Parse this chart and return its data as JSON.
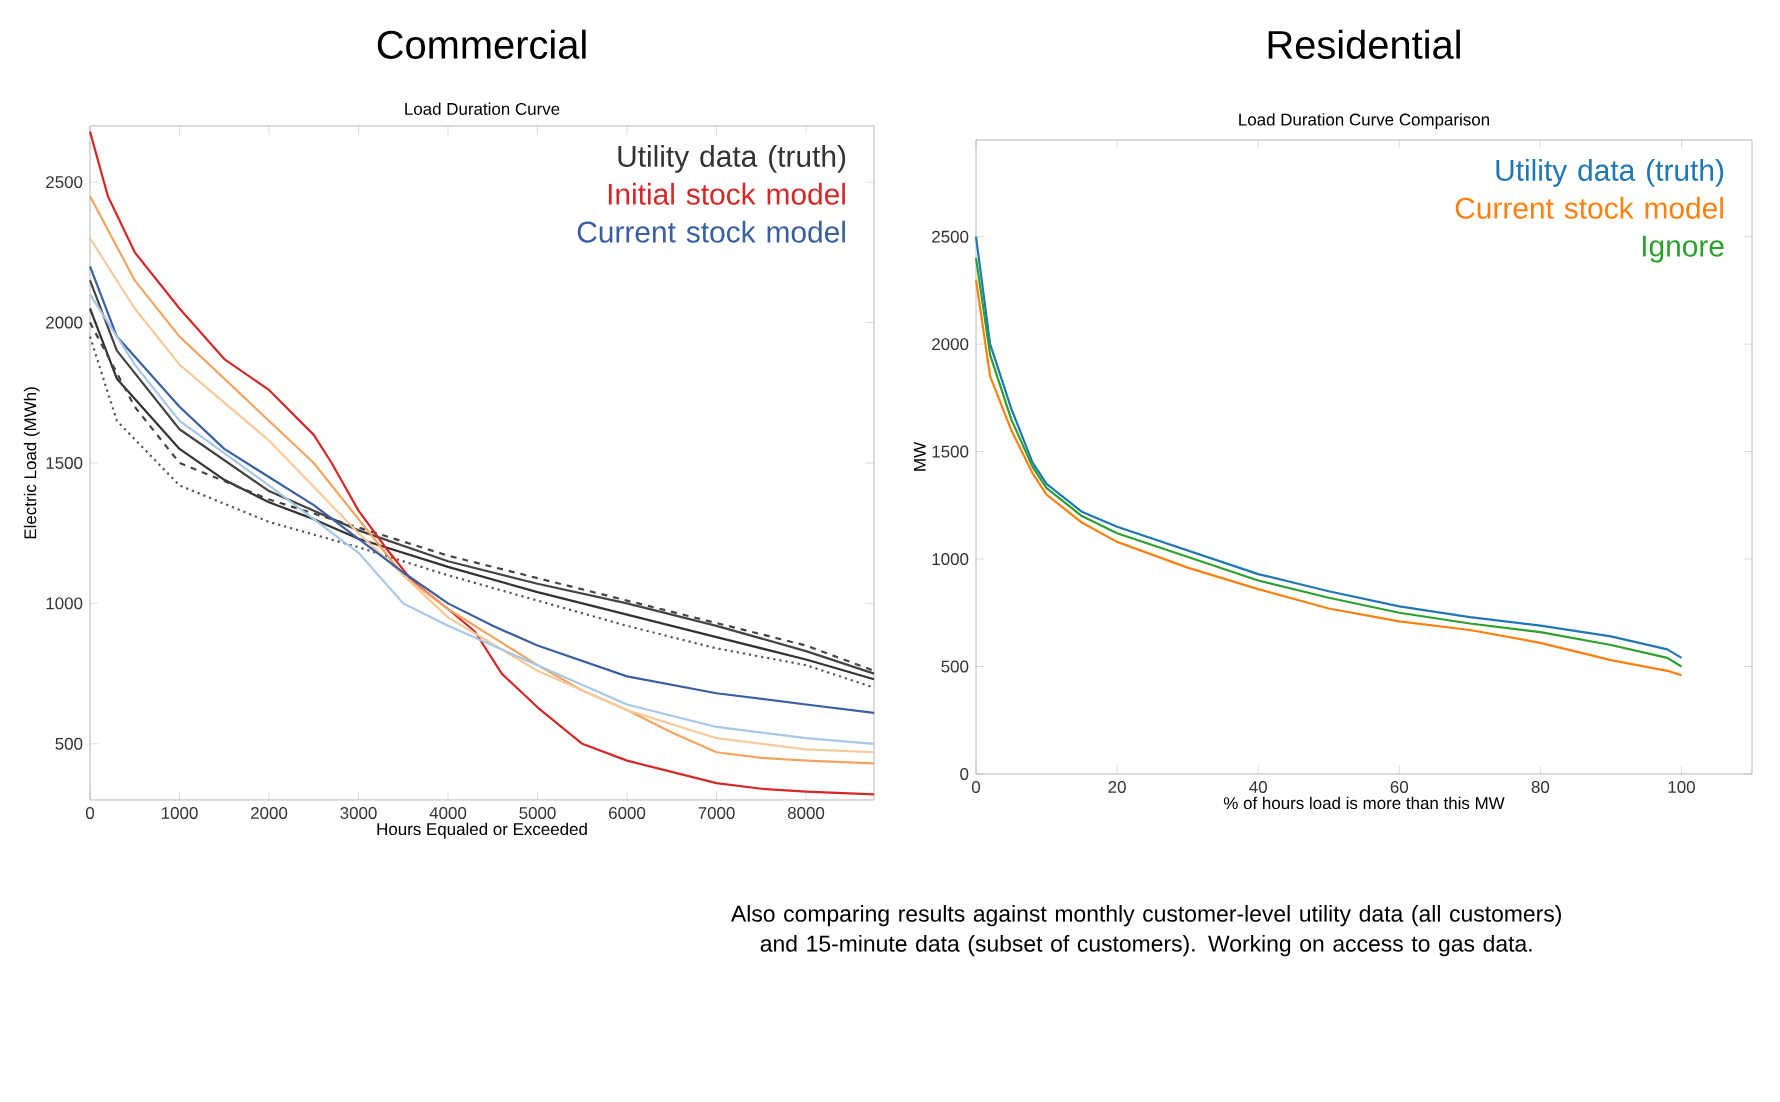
{
  "chart_data": [
    {
      "type": "line",
      "title": "Commercial",
      "subtitle": "Load Duration Curve",
      "xlabel": "Hours Equaled or Exceeded",
      "ylabel": "Electric Load (MWh)",
      "xlim": [
        0,
        8760
      ],
      "ylim": [
        300,
        2700
      ],
      "xticks": [
        0,
        1000,
        2000,
        3000,
        4000,
        5000,
        6000,
        7000,
        8000
      ],
      "yticks": [
        500,
        1000,
        1500,
        2000,
        2500
      ],
      "legend": "top right",
      "series": [
        {
          "name": "Utility data (truth)",
          "color": "#333333",
          "line_style": "solid",
          "x": [
            0,
            300,
            1000,
            1500,
            2000,
            2500,
            3000,
            4000,
            5000,
            6000,
            7000,
            8000,
            8760
          ],
          "values": [
            2050,
            1800,
            1550,
            1440,
            1360,
            1300,
            1230,
            1130,
            1040,
            960,
            880,
            800,
            730
          ]
        },
        {
          "color": "#444444",
          "line_style": "solid",
          "x": [
            0,
            300,
            1000,
            2000,
            3000,
            4000,
            5000,
            6000,
            7000,
            8000,
            8760
          ],
          "values": [
            2150,
            1900,
            1620,
            1400,
            1260,
            1150,
            1070,
            1000,
            920,
            830,
            750
          ]
        },
        {
          "color": "#444444",
          "line_style": "dashed",
          "x": [
            0,
            500,
            1000,
            2000,
            3000,
            4000,
            5000,
            6000,
            7000,
            8000,
            8760
          ],
          "values": [
            2000,
            1700,
            1500,
            1370,
            1270,
            1170,
            1090,
            1010,
            930,
            850,
            760
          ]
        },
        {
          "color": "#555555",
          "line_style": "dotted",
          "x": [
            0,
            300,
            1000,
            2000,
            3000,
            4000,
            5000,
            6000,
            7000,
            8000,
            8760
          ],
          "values": [
            1950,
            1650,
            1420,
            1290,
            1200,
            1100,
            1010,
            920,
            840,
            780,
            700
          ]
        },
        {
          "name": "Initial stock model",
          "color": "#d62728",
          "line_style": "solid",
          "x": [
            0,
            200,
            500,
            1000,
            1500,
            2000,
            2500,
            2700,
            3000,
            3300,
            3600,
            4000,
            4300,
            4600,
            5000,
            5500,
            6000,
            6500,
            7000,
            7500,
            8000,
            8760
          ],
          "values": [
            2680,
            2450,
            2250,
            2050,
            1870,
            1760,
            1600,
            1500,
            1330,
            1200,
            1080,
            980,
            900,
            750,
            630,
            500,
            440,
            400,
            360,
            340,
            330,
            320
          ]
        },
        {
          "color": "#f4a460",
          "line_style": "solid",
          "x": [
            0,
            500,
            1000,
            1500,
            2000,
            2500,
            3000,
            3500,
            4000,
            4500,
            5000,
            5500,
            6000,
            6500,
            7000,
            7500,
            8000,
            8760
          ],
          "values": [
            2450,
            2150,
            1950,
            1800,
            1650,
            1500,
            1300,
            1100,
            980,
            880,
            780,
            690,
            620,
            540,
            470,
            450,
            440,
            430
          ]
        },
        {
          "color": "#f7c99b",
          "line_style": "solid",
          "x": [
            0,
            500,
            1000,
            2000,
            3000,
            4000,
            5000,
            6000,
            7000,
            8000,
            8760
          ],
          "values": [
            2300,
            2050,
            1850,
            1580,
            1250,
            950,
            760,
            620,
            520,
            480,
            470
          ]
        },
        {
          "name": "Current stock model",
          "color": "#3a5fa0",
          "line_style": "solid",
          "x": [
            0,
            300,
            1000,
            1500,
            2000,
            2500,
            3000,
            3500,
            4000,
            4500,
            5000,
            6000,
            7000,
            8000,
            8760
          ],
          "values": [
            2200,
            1950,
            1700,
            1550,
            1450,
            1350,
            1230,
            1110,
            1000,
            920,
            850,
            740,
            680,
            640,
            610
          ]
        },
        {
          "color": "#a6c8e8",
          "line_style": "solid",
          "x": [
            0,
            500,
            1000,
            2000,
            3000,
            3500,
            4000,
            5000,
            6000,
            7000,
            8000,
            8760
          ],
          "values": [
            2100,
            1850,
            1650,
            1420,
            1180,
            1000,
            920,
            780,
            640,
            560,
            520,
            500
          ]
        }
      ]
    },
    {
      "type": "line",
      "title": "Residential",
      "subtitle": "Load Duration Curve Comparison",
      "xlabel": "% of hours load is more than this MW",
      "ylabel": "MW",
      "xlim": [
        0,
        110
      ],
      "ylim": [
        0,
        2950
      ],
      "xticks": [
        0,
        20,
        40,
        60,
        80,
        100
      ],
      "yticks": [
        0,
        500,
        1000,
        1500,
        2000,
        2500
      ],
      "legend": "top right",
      "annotations": [
        "Also comparing results against monthly customer-level utility data (all customers) and 15-minute data (subset of customers).  Working on access to gas data."
      ],
      "series": [
        {
          "name": "Utility data (truth)",
          "color": "#1f77b4",
          "line_style": "solid",
          "x": [
            0,
            2,
            5,
            8,
            10,
            15,
            20,
            30,
            40,
            50,
            60,
            70,
            80,
            90,
            98,
            100
          ],
          "values": [
            2500,
            2000,
            1700,
            1450,
            1350,
            1220,
            1150,
            1040,
            930,
            850,
            780,
            730,
            690,
            640,
            580,
            540
          ]
        },
        {
          "name": "Current stock model",
          "color": "#ff7f0e",
          "line_style": "solid",
          "x": [
            0,
            2,
            5,
            8,
            10,
            15,
            20,
            30,
            40,
            50,
            60,
            70,
            80,
            90,
            98,
            100
          ],
          "values": [
            2300,
            1850,
            1600,
            1400,
            1300,
            1170,
            1080,
            960,
            860,
            770,
            710,
            670,
            610,
            530,
            480,
            460
          ]
        },
        {
          "name": "Ignore",
          "color": "#2ca02c",
          "line_style": "solid",
          "x": [
            0,
            2,
            5,
            8,
            10,
            15,
            20,
            30,
            40,
            50,
            60,
            70,
            80,
            90,
            98,
            100
          ],
          "values": [
            2400,
            1950,
            1650,
            1430,
            1330,
            1200,
            1120,
            1010,
            900,
            820,
            750,
            700,
            660,
            600,
            540,
            500
          ]
        }
      ]
    }
  ]
}
